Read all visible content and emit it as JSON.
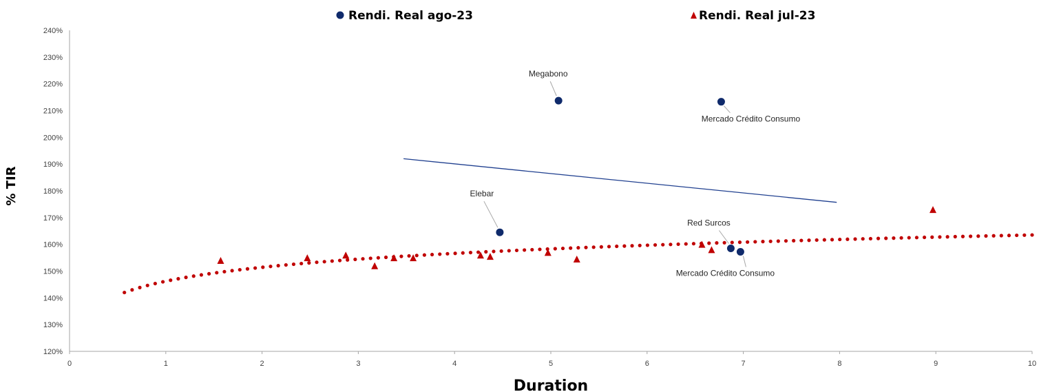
{
  "chart_data": {
    "type": "scatter",
    "xlabel": "Duration",
    "ylabel": "% TIR",
    "xlim": [
      0,
      10
    ],
    "ylim": [
      1.2,
      2.4
    ],
    "x_ticks": [
      "0",
      "1",
      "2",
      "3",
      "4",
      "5",
      "6",
      "7",
      "8",
      "9",
      "10"
    ],
    "y_ticks": [
      "120%",
      "130%",
      "140%",
      "150%",
      "160%",
      "170%",
      "180%",
      "190%",
      "200%",
      "210%",
      "220%",
      "230%",
      "240%"
    ],
    "grid": false,
    "legend_position": "top",
    "series": [
      {
        "name": "Rendi. Real ago-23",
        "marker": "circle",
        "color": "#0f2a6b",
        "points": [
          {
            "x": 5.08,
            "y": 2.137,
            "label": "Megabono"
          },
          {
            "x": 6.77,
            "y": 2.133,
            "label": "Mercado Crédito Consumo"
          },
          {
            "x": 4.47,
            "y": 1.645,
            "label": "Elebar"
          },
          {
            "x": 6.87,
            "y": 1.585,
            "label": "Red Surcos"
          },
          {
            "x": 6.97,
            "y": 1.572,
            "label": "Mercado Crédito Consumo"
          }
        ]
      },
      {
        "name": "Rendi. Real jul-23",
        "marker": "triangle",
        "color": "#c00000",
        "points": [
          {
            "x": 1.57,
            "y": 1.54
          },
          {
            "x": 2.47,
            "y": 1.55
          },
          {
            "x": 2.87,
            "y": 1.56
          },
          {
            "x": 3.17,
            "y": 1.52
          },
          {
            "x": 3.37,
            "y": 1.55
          },
          {
            "x": 3.57,
            "y": 1.55
          },
          {
            "x": 4.27,
            "y": 1.56
          },
          {
            "x": 4.37,
            "y": 1.555
          },
          {
            "x": 4.97,
            "y": 1.57
          },
          {
            "x": 5.27,
            "y": 1.545
          },
          {
            "x": 6.57,
            "y": 1.6
          },
          {
            "x": 6.67,
            "y": 1.58
          },
          {
            "x": 8.97,
            "y": 1.73
          }
        ]
      }
    ],
    "trendlines": [
      {
        "series": "Rendi. Real jul-23",
        "kind": "logarithmic",
        "style": "dotted",
        "color": "#c00000",
        "x_range": [
          0.57,
          10
        ],
        "y_at_start": 1.42,
        "y_at_end": 1.635
      },
      {
        "series": "Rendi. Real ago-23",
        "kind": "linear",
        "style": "solid",
        "color": "#1f3f8f",
        "x_range": [
          3.47,
          7.97
        ],
        "y_at_start": 1.92,
        "y_at_end": 1.757
      }
    ]
  }
}
